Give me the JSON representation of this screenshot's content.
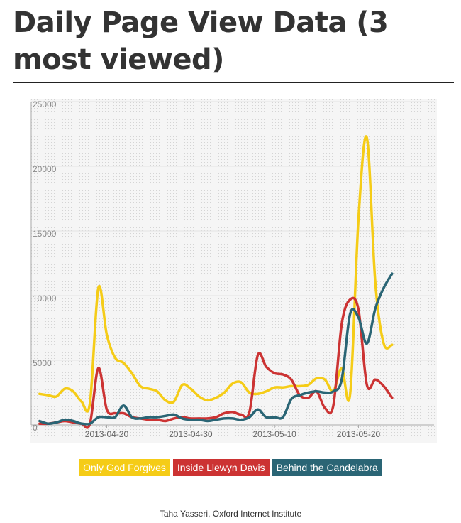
{
  "page": {
    "title": "Daily Page View Data (3 most viewed)",
    "credit": "Taha Yasseri, Oxford Internet Institute"
  },
  "colors": {
    "only_god_forgives": "#f5cc17",
    "inside_llewyn_davis": "#cc3333",
    "behind_the_candelabra": "#2a6575"
  },
  "chart_data": {
    "type": "line",
    "title": "",
    "xlabel": "",
    "ylabel": "",
    "x_start": "2013-04-12",
    "x_end": "2013-05-24",
    "xlim": [
      "2013-04-11",
      "2013-05-29"
    ],
    "ylim": [
      0,
      25000
    ],
    "x_ticks": [
      "2013-04-20",
      "2013-04-30",
      "2013-05-10",
      "2013-05-20"
    ],
    "y_ticks": [
      "0",
      "5000",
      "10000",
      "15000",
      "20000",
      "25000"
    ],
    "y_tick_values": [
      0,
      5000,
      10000,
      15000,
      20000,
      25000
    ],
    "grid": true,
    "legend_position": "bottom",
    "series": [
      {
        "name": "Only God Forgives",
        "color": "#f5cc17",
        "values": [
          2400,
          2300,
          2200,
          2800,
          2600,
          1800,
          1700,
          10600,
          7000,
          5200,
          4800,
          4000,
          3000,
          2800,
          2600,
          1900,
          1800,
          3100,
          2800,
          2200,
          1900,
          2100,
          2500,
          3200,
          3300,
          2500,
          2400,
          2600,
          2900,
          2900,
          3000,
          3000,
          3100,
          3600,
          3500,
          2600,
          4400,
          2400,
          16000,
          22200,
          11000,
          6300,
          6200
        ]
      },
      {
        "name": "Inside Llewyn Davis",
        "color": "#cc3333",
        "values": [
          100,
          100,
          200,
          300,
          200,
          100,
          100,
          4400,
          1200,
          900,
          900,
          600,
          500,
          400,
          400,
          300,
          500,
          600,
          500,
          500,
          500,
          600,
          900,
          1000,
          800,
          1000,
          5400,
          4500,
          4000,
          3900,
          3500,
          2300,
          2100,
          2600,
          1300,
          1500,
          7800,
          9700,
          8900,
          3100,
          3500,
          3000,
          2100
        ]
      },
      {
        "name": "Behind the Candelabra",
        "color": "#2a6575",
        "values": [
          300,
          100,
          200,
          400,
          300,
          100,
          100,
          600,
          600,
          600,
          1500,
          600,
          500,
          600,
          600,
          700,
          800,
          500,
          400,
          400,
          300,
          400,
          500,
          500,
          400,
          600,
          1200,
          600,
          600,
          600,
          2000,
          2300,
          2500,
          2600,
          2500,
          2600,
          3500,
          8600,
          8300,
          6300,
          9000,
          10600,
          11700
        ]
      }
    ]
  }
}
